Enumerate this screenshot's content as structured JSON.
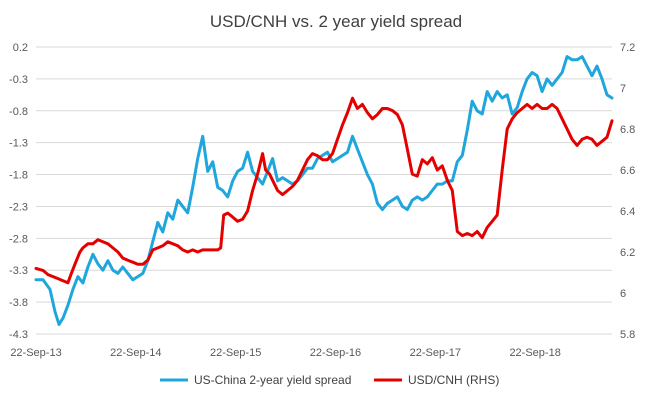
{
  "chart_data": {
    "type": "line",
    "title": "USD/CNH vs. 2 year yield spread",
    "x_ticks": [
      "22-Sep-13",
      "22-Sep-14",
      "22-Sep-15",
      "22-Sep-16",
      "22-Sep-17",
      "22-Sep-18"
    ],
    "x_range": [
      2013.73,
      2019.5
    ],
    "left_axis": {
      "ticks": [
        "0.2",
        "-0.3",
        "-0.8",
        "-1.3",
        "-1.8",
        "-2.3",
        "-2.8",
        "-3.3",
        "-3.8",
        "-4.3"
      ],
      "ylim": [
        -4.3,
        0.2
      ]
    },
    "right_axis": {
      "ticks": [
        "7.2",
        "7",
        "6.8",
        "6.6",
        "6.4",
        "6.2",
        "6",
        "5.8"
      ],
      "ylim": [
        5.8,
        7.2
      ]
    },
    "legend_position": "bottom",
    "series": [
      {
        "name": "US-China 2-year yield spread",
        "axis": "left",
        "color": "#1fa7dd",
        "points": [
          [
            2013.73,
            -3.45
          ],
          [
            2013.8,
            -3.45
          ],
          [
            2013.87,
            -3.6
          ],
          [
            2013.92,
            -3.95
          ],
          [
            2013.96,
            -4.15
          ],
          [
            2014.0,
            -4.05
          ],
          [
            2014.05,
            -3.85
          ],
          [
            2014.1,
            -3.6
          ],
          [
            2014.15,
            -3.4
          ],
          [
            2014.2,
            -3.5
          ],
          [
            2014.25,
            -3.25
          ],
          [
            2014.3,
            -3.05
          ],
          [
            2014.35,
            -3.2
          ],
          [
            2014.4,
            -3.3
          ],
          [
            2014.45,
            -3.15
          ],
          [
            2014.5,
            -3.3
          ],
          [
            2014.55,
            -3.35
          ],
          [
            2014.6,
            -3.25
          ],
          [
            2014.65,
            -3.35
          ],
          [
            2014.7,
            -3.45
          ],
          [
            2014.75,
            -3.4
          ],
          [
            2014.8,
            -3.35
          ],
          [
            2014.85,
            -3.15
          ],
          [
            2014.9,
            -2.85
          ],
          [
            2014.95,
            -2.55
          ],
          [
            2015.0,
            -2.7
          ],
          [
            2015.05,
            -2.4
          ],
          [
            2015.1,
            -2.5
          ],
          [
            2015.15,
            -2.2
          ],
          [
            2015.2,
            -2.3
          ],
          [
            2015.25,
            -2.4
          ],
          [
            2015.3,
            -2.0
          ],
          [
            2015.35,
            -1.55
          ],
          [
            2015.4,
            -1.2
          ],
          [
            2015.45,
            -1.75
          ],
          [
            2015.5,
            -1.6
          ],
          [
            2015.55,
            -2.0
          ],
          [
            2015.6,
            -2.05
          ],
          [
            2015.65,
            -2.15
          ],
          [
            2015.7,
            -1.9
          ],
          [
            2015.75,
            -1.75
          ],
          [
            2015.8,
            -1.7
          ],
          [
            2015.85,
            -1.45
          ],
          [
            2015.9,
            -1.75
          ],
          [
            2015.95,
            -1.85
          ],
          [
            2016.0,
            -1.95
          ],
          [
            2016.05,
            -1.75
          ],
          [
            2016.1,
            -1.55
          ],
          [
            2016.15,
            -1.9
          ],
          [
            2016.2,
            -1.85
          ],
          [
            2016.25,
            -1.9
          ],
          [
            2016.3,
            -1.95
          ],
          [
            2016.35,
            -1.9
          ],
          [
            2016.4,
            -1.8
          ],
          [
            2016.45,
            -1.7
          ],
          [
            2016.5,
            -1.7
          ],
          [
            2016.55,
            -1.55
          ],
          [
            2016.6,
            -1.5
          ],
          [
            2016.65,
            -1.45
          ],
          [
            2016.7,
            -1.6
          ],
          [
            2016.75,
            -1.55
          ],
          [
            2016.8,
            -1.5
          ],
          [
            2016.85,
            -1.45
          ],
          [
            2016.9,
            -1.2
          ],
          [
            2016.95,
            -1.4
          ],
          [
            2017.0,
            -1.6
          ],
          [
            2017.05,
            -1.8
          ],
          [
            2017.1,
            -1.95
          ],
          [
            2017.15,
            -2.25
          ],
          [
            2017.2,
            -2.35
          ],
          [
            2017.25,
            -2.25
          ],
          [
            2017.3,
            -2.2
          ],
          [
            2017.35,
            -2.15
          ],
          [
            2017.4,
            -2.3
          ],
          [
            2017.45,
            -2.35
          ],
          [
            2017.5,
            -2.2
          ],
          [
            2017.55,
            -2.15
          ],
          [
            2017.6,
            -2.2
          ],
          [
            2017.65,
            -2.15
          ],
          [
            2017.7,
            -2.05
          ],
          [
            2017.75,
            -1.95
          ],
          [
            2017.8,
            -1.95
          ],
          [
            2017.85,
            -1.9
          ],
          [
            2017.9,
            -1.9
          ],
          [
            2017.95,
            -1.6
          ],
          [
            2018.0,
            -1.5
          ],
          [
            2018.05,
            -1.1
          ],
          [
            2018.1,
            -0.65
          ],
          [
            2018.15,
            -0.8
          ],
          [
            2018.2,
            -0.85
          ],
          [
            2018.25,
            -0.5
          ],
          [
            2018.3,
            -0.65
          ],
          [
            2018.35,
            -0.5
          ],
          [
            2018.4,
            -0.6
          ],
          [
            2018.45,
            -0.55
          ],
          [
            2018.5,
            -0.85
          ],
          [
            2018.55,
            -0.75
          ],
          [
            2018.6,
            -0.5
          ],
          [
            2018.65,
            -0.3
          ],
          [
            2018.7,
            -0.2
          ],
          [
            2018.75,
            -0.25
          ],
          [
            2018.8,
            -0.5
          ],
          [
            2018.85,
            -0.3
          ],
          [
            2018.9,
            -0.4
          ],
          [
            2018.95,
            -0.3
          ],
          [
            2019.0,
            -0.2
          ],
          [
            2019.05,
            0.05
          ],
          [
            2019.1,
            0.0
          ],
          [
            2019.15,
            0.0
          ],
          [
            2019.2,
            0.05
          ],
          [
            2019.25,
            -0.1
          ],
          [
            2019.3,
            -0.25
          ],
          [
            2019.35,
            -0.1
          ],
          [
            2019.4,
            -0.3
          ],
          [
            2019.45,
            -0.55
          ],
          [
            2019.5,
            -0.6
          ]
        ]
      },
      {
        "name": "USD/CNH (RHS)",
        "axis": "right",
        "color": "#e50000",
        "points": [
          [
            2013.73,
            6.12
          ],
          [
            2013.8,
            6.11
          ],
          [
            2013.85,
            6.09
          ],
          [
            2013.9,
            6.08
          ],
          [
            2013.95,
            6.07
          ],
          [
            2014.0,
            6.06
          ],
          [
            2014.05,
            6.05
          ],
          [
            2014.08,
            6.09
          ],
          [
            2014.12,
            6.14
          ],
          [
            2014.17,
            6.2
          ],
          [
            2014.2,
            6.22
          ],
          [
            2014.25,
            6.24
          ],
          [
            2014.3,
            6.24
          ],
          [
            2014.35,
            6.26
          ],
          [
            2014.4,
            6.25
          ],
          [
            2014.45,
            6.24
          ],
          [
            2014.5,
            6.22
          ],
          [
            2014.55,
            6.2
          ],
          [
            2014.6,
            6.17
          ],
          [
            2014.65,
            6.16
          ],
          [
            2014.7,
            6.15
          ],
          [
            2014.75,
            6.14
          ],
          [
            2014.8,
            6.14
          ],
          [
            2014.85,
            6.16
          ],
          [
            2014.9,
            6.21
          ],
          [
            2014.95,
            6.22
          ],
          [
            2015.0,
            6.23
          ],
          [
            2015.05,
            6.25
          ],
          [
            2015.1,
            6.24
          ],
          [
            2015.15,
            6.23
          ],
          [
            2015.2,
            6.21
          ],
          [
            2015.25,
            6.2
          ],
          [
            2015.3,
            6.21
          ],
          [
            2015.35,
            6.2
          ],
          [
            2015.4,
            6.21
          ],
          [
            2015.45,
            6.21
          ],
          [
            2015.5,
            6.21
          ],
          [
            2015.55,
            6.21
          ],
          [
            2015.58,
            6.22
          ],
          [
            2015.61,
            6.38
          ],
          [
            2015.65,
            6.39
          ],
          [
            2015.7,
            6.37
          ],
          [
            2015.75,
            6.35
          ],
          [
            2015.8,
            6.36
          ],
          [
            2015.85,
            6.4
          ],
          [
            2015.9,
            6.5
          ],
          [
            2015.95,
            6.58
          ],
          [
            2016.0,
            6.68
          ],
          [
            2016.03,
            6.6
          ],
          [
            2016.07,
            6.58
          ],
          [
            2016.1,
            6.55
          ],
          [
            2016.15,
            6.5
          ],
          [
            2016.2,
            6.48
          ],
          [
            2016.25,
            6.5
          ],
          [
            2016.3,
            6.52
          ],
          [
            2016.35,
            6.55
          ],
          [
            2016.4,
            6.6
          ],
          [
            2016.45,
            6.65
          ],
          [
            2016.5,
            6.68
          ],
          [
            2016.55,
            6.67
          ],
          [
            2016.6,
            6.65
          ],
          [
            2016.65,
            6.65
          ],
          [
            2016.7,
            6.68
          ],
          [
            2016.75,
            6.75
          ],
          [
            2016.8,
            6.82
          ],
          [
            2016.85,
            6.88
          ],
          [
            2016.9,
            6.95
          ],
          [
            2016.95,
            6.9
          ],
          [
            2017.0,
            6.92
          ],
          [
            2017.05,
            6.88
          ],
          [
            2017.1,
            6.85
          ],
          [
            2017.15,
            6.87
          ],
          [
            2017.2,
            6.9
          ],
          [
            2017.25,
            6.9
          ],
          [
            2017.3,
            6.89
          ],
          [
            2017.35,
            6.87
          ],
          [
            2017.4,
            6.82
          ],
          [
            2017.45,
            6.7
          ],
          [
            2017.5,
            6.58
          ],
          [
            2017.55,
            6.57
          ],
          [
            2017.6,
            6.65
          ],
          [
            2017.65,
            6.63
          ],
          [
            2017.7,
            6.66
          ],
          [
            2017.75,
            6.6
          ],
          [
            2017.8,
            6.62
          ],
          [
            2017.85,
            6.55
          ],
          [
            2017.9,
            6.5
          ],
          [
            2017.95,
            6.3
          ],
          [
            2018.0,
            6.28
          ],
          [
            2018.05,
            6.29
          ],
          [
            2018.1,
            6.28
          ],
          [
            2018.15,
            6.3
          ],
          [
            2018.2,
            6.27
          ],
          [
            2018.25,
            6.32
          ],
          [
            2018.3,
            6.35
          ],
          [
            2018.35,
            6.38
          ],
          [
            2018.4,
            6.6
          ],
          [
            2018.45,
            6.8
          ],
          [
            2018.5,
            6.85
          ],
          [
            2018.55,
            6.88
          ],
          [
            2018.6,
            6.9
          ],
          [
            2018.65,
            6.92
          ],
          [
            2018.7,
            6.9
          ],
          [
            2018.75,
            6.92
          ],
          [
            2018.8,
            6.9
          ],
          [
            2018.85,
            6.9
          ],
          [
            2018.9,
            6.92
          ],
          [
            2018.95,
            6.9
          ],
          [
            2019.0,
            6.85
          ],
          [
            2019.05,
            6.8
          ],
          [
            2019.1,
            6.75
          ],
          [
            2019.15,
            6.72
          ],
          [
            2019.2,
            6.75
          ],
          [
            2019.25,
            6.76
          ],
          [
            2019.3,
            6.75
          ],
          [
            2019.35,
            6.72
          ],
          [
            2019.4,
            6.74
          ],
          [
            2019.45,
            6.76
          ],
          [
            2019.5,
            6.84
          ]
        ]
      }
    ]
  }
}
